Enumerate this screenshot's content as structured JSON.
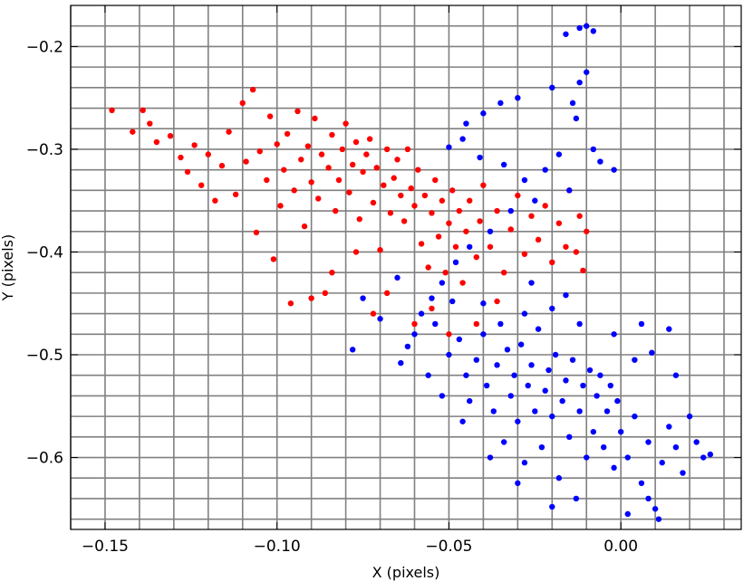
{
  "chart_data": {
    "type": "scatter",
    "title": "",
    "xlabel": "X (pixels)",
    "ylabel": "Y (pixels)",
    "xlim": [
      -0.16,
      0.035
    ],
    "ylim": [
      -0.67,
      -0.16
    ],
    "grid": true,
    "grid_color": "#808080",
    "x_ticks": [
      -0.15,
      -0.1,
      -0.05,
      0.0
    ],
    "x_tick_labels": [
      "−0.15",
      "−0.10",
      "−0.05",
      "0.00"
    ],
    "y_ticks": [
      -0.6,
      -0.5,
      -0.4,
      -0.3,
      -0.2
    ],
    "y_tick_labels": [
      "−0.6",
      "−0.5",
      "−0.4",
      "−0.3",
      "−0.2"
    ],
    "x_grid": [
      -0.16,
      -0.15,
      -0.14,
      -0.13,
      -0.12,
      -0.11,
      -0.1,
      -0.09,
      -0.08,
      -0.07,
      -0.06,
      -0.05,
      -0.04,
      -0.03,
      -0.02,
      -0.01,
      0.0,
      0.01,
      0.02,
      0.03
    ],
    "y_grid": [
      -0.66,
      -0.64,
      -0.62,
      -0.6,
      -0.58,
      -0.56,
      -0.54,
      -0.52,
      -0.5,
      -0.48,
      -0.46,
      -0.44,
      -0.42,
      -0.4,
      -0.38,
      -0.36,
      -0.34,
      -0.32,
      -0.3,
      -0.28,
      -0.26,
      -0.24,
      -0.22,
      -0.2,
      -0.18
    ],
    "series": [
      {
        "color": "#ff0000",
        "points": [
          [
            -0.148,
            -0.262
          ],
          [
            -0.142,
            -0.283
          ],
          [
            -0.139,
            -0.262
          ],
          [
            -0.137,
            -0.275
          ],
          [
            -0.135,
            -0.293
          ],
          [
            -0.131,
            -0.287
          ],
          [
            -0.128,
            -0.308
          ],
          [
            -0.126,
            -0.322
          ],
          [
            -0.124,
            -0.296
          ],
          [
            -0.122,
            -0.335
          ],
          [
            -0.12,
            -0.305
          ],
          [
            -0.118,
            -0.35
          ],
          [
            -0.116,
            -0.316
          ],
          [
            -0.114,
            -0.283
          ],
          [
            -0.112,
            -0.344
          ],
          [
            -0.11,
            -0.255
          ],
          [
            -0.109,
            -0.312
          ],
          [
            -0.107,
            -0.242
          ],
          [
            -0.106,
            -0.381
          ],
          [
            -0.105,
            -0.302
          ],
          [
            -0.103,
            -0.33
          ],
          [
            -0.102,
            -0.268
          ],
          [
            -0.101,
            -0.407
          ],
          [
            -0.1,
            -0.295
          ],
          [
            -0.099,
            -0.355
          ],
          [
            -0.098,
            -0.32
          ],
          [
            -0.097,
            -0.285
          ],
          [
            -0.096,
            -0.45
          ],
          [
            -0.095,
            -0.34
          ],
          [
            -0.094,
            -0.263
          ],
          [
            -0.093,
            -0.31
          ],
          [
            -0.092,
            -0.375
          ],
          [
            -0.091,
            -0.297
          ],
          [
            -0.09,
            -0.332
          ],
          [
            -0.089,
            -0.27
          ],
          [
            -0.088,
            -0.348
          ],
          [
            -0.087,
            -0.305
          ],
          [
            -0.086,
            -0.44
          ],
          [
            -0.085,
            -0.318
          ],
          [
            -0.084,
            -0.286
          ],
          [
            -0.083,
            -0.36
          ],
          [
            -0.082,
            -0.33
          ],
          [
            -0.081,
            -0.3
          ],
          [
            -0.08,
            -0.275
          ],
          [
            -0.079,
            -0.342
          ],
          [
            -0.078,
            -0.315
          ],
          [
            -0.077,
            -0.293
          ],
          [
            -0.076,
            -0.368
          ],
          [
            -0.075,
            -0.322
          ],
          [
            -0.074,
            -0.305
          ],
          [
            -0.073,
            -0.29
          ],
          [
            -0.072,
            -0.352
          ],
          [
            -0.071,
            -0.318
          ],
          [
            -0.07,
            -0.398
          ],
          [
            -0.069,
            -0.335
          ],
          [
            -0.068,
            -0.3
          ],
          [
            -0.067,
            -0.362
          ],
          [
            -0.066,
            -0.328
          ],
          [
            -0.065,
            -0.31
          ],
          [
            -0.064,
            -0.345
          ],
          [
            -0.063,
            -0.37
          ],
          [
            -0.062,
            -0.3
          ],
          [
            -0.061,
            -0.338
          ],
          [
            -0.06,
            -0.355
          ],
          [
            -0.059,
            -0.32
          ],
          [
            -0.058,
            -0.392
          ],
          [
            -0.057,
            -0.345
          ],
          [
            -0.056,
            -0.415
          ],
          [
            -0.055,
            -0.362
          ],
          [
            -0.054,
            -0.33
          ],
          [
            -0.053,
            -0.385
          ],
          [
            -0.052,
            -0.35
          ],
          [
            -0.051,
            -0.42
          ],
          [
            -0.05,
            -0.372
          ],
          [
            -0.049,
            -0.34
          ],
          [
            -0.048,
            -0.395
          ],
          [
            -0.047,
            -0.36
          ],
          [
            -0.046,
            -0.43
          ],
          [
            -0.045,
            -0.38
          ],
          [
            -0.044,
            -0.35
          ],
          [
            -0.042,
            -0.405
          ],
          [
            -0.041,
            -0.37
          ],
          [
            -0.04,
            -0.335
          ],
          [
            -0.038,
            -0.395
          ],
          [
            -0.036,
            -0.36
          ],
          [
            -0.034,
            -0.42
          ],
          [
            -0.032,
            -0.378
          ],
          [
            -0.03,
            -0.345
          ],
          [
            -0.028,
            -0.402
          ],
          [
            -0.026,
            -0.365
          ],
          [
            -0.024,
            -0.388
          ],
          [
            -0.022,
            -0.355
          ],
          [
            -0.02,
            -0.41
          ],
          [
            -0.018,
            -0.372
          ],
          [
            -0.016,
            -0.395
          ],
          [
            -0.015,
            -0.34
          ],
          [
            -0.012,
            -0.365
          ],
          [
            -0.01,
            -0.38
          ],
          [
            -0.011,
            -0.418
          ],
          [
            -0.013,
            -0.4
          ],
          [
            -0.09,
            -0.445
          ],
          [
            -0.084,
            -0.42
          ],
          [
            -0.072,
            -0.46
          ],
          [
            -0.068,
            -0.44
          ],
          [
            -0.077,
            -0.4
          ],
          [
            -0.06,
            -0.47
          ],
          [
            -0.055,
            -0.455
          ],
          [
            -0.05,
            -0.48
          ],
          [
            -0.042,
            -0.47
          ],
          [
            -0.036,
            -0.448
          ]
        ]
      },
      {
        "color": "#0000ff",
        "points": [
          [
            -0.01,
            -0.18
          ],
          [
            -0.012,
            -0.182
          ],
          [
            -0.008,
            -0.185
          ],
          [
            -0.016,
            -0.188
          ],
          [
            -0.01,
            -0.225
          ],
          [
            -0.012,
            -0.235
          ],
          [
            -0.014,
            -0.255
          ],
          [
            -0.013,
            -0.27
          ],
          [
            -0.02,
            -0.24
          ],
          [
            -0.03,
            -0.25
          ],
          [
            -0.035,
            -0.255
          ],
          [
            -0.04,
            -0.265
          ],
          [
            -0.045,
            -0.275
          ],
          [
            -0.046,
            -0.29
          ],
          [
            -0.05,
            -0.298
          ],
          [
            -0.041,
            -0.308
          ],
          [
            -0.034,
            -0.315
          ],
          [
            -0.028,
            -0.33
          ],
          [
            -0.022,
            -0.32
          ],
          [
            -0.015,
            -0.34
          ],
          [
            -0.006,
            -0.312
          ],
          [
            -0.002,
            -0.32
          ],
          [
            -0.008,
            -0.3
          ],
          [
            -0.018,
            -0.305
          ],
          [
            -0.025,
            -0.35
          ],
          [
            -0.032,
            -0.36
          ],
          [
            -0.038,
            -0.38
          ],
          [
            -0.044,
            -0.395
          ],
          [
            -0.048,
            -0.41
          ],
          [
            -0.052,
            -0.43
          ],
          [
            -0.055,
            -0.445
          ],
          [
            -0.058,
            -0.46
          ],
          [
            -0.06,
            -0.48
          ],
          [
            -0.062,
            -0.492
          ],
          [
            -0.07,
            -0.465
          ],
          [
            -0.075,
            -0.445
          ],
          [
            -0.078,
            -0.495
          ],
          [
            -0.065,
            -0.425
          ],
          [
            -0.064,
            -0.508
          ],
          [
            -0.054,
            -0.47
          ],
          [
            -0.05,
            -0.5
          ],
          [
            -0.047,
            -0.485
          ],
          [
            -0.045,
            -0.52
          ],
          [
            -0.044,
            -0.545
          ],
          [
            -0.042,
            -0.505
          ],
          [
            -0.04,
            -0.48
          ],
          [
            -0.039,
            -0.53
          ],
          [
            -0.037,
            -0.555
          ],
          [
            -0.036,
            -0.51
          ],
          [
            -0.035,
            -0.47
          ],
          [
            -0.034,
            -0.585
          ],
          [
            -0.033,
            -0.495
          ],
          [
            -0.032,
            -0.54
          ],
          [
            -0.031,
            -0.52
          ],
          [
            -0.03,
            -0.565
          ],
          [
            -0.029,
            -0.49
          ],
          [
            -0.028,
            -0.605
          ],
          [
            -0.027,
            -0.53
          ],
          [
            -0.026,
            -0.51
          ],
          [
            -0.025,
            -0.555
          ],
          [
            -0.024,
            -0.475
          ],
          [
            -0.023,
            -0.59
          ],
          [
            -0.022,
            -0.535
          ],
          [
            -0.021,
            -0.515
          ],
          [
            -0.02,
            -0.56
          ],
          [
            -0.019,
            -0.5
          ],
          [
            -0.018,
            -0.62
          ],
          [
            -0.017,
            -0.545
          ],
          [
            -0.016,
            -0.525
          ],
          [
            -0.015,
            -0.58
          ],
          [
            -0.014,
            -0.505
          ],
          [
            -0.013,
            -0.64
          ],
          [
            -0.012,
            -0.555
          ],
          [
            -0.011,
            -0.53
          ],
          [
            -0.01,
            -0.6
          ],
          [
            -0.009,
            -0.515
          ],
          [
            -0.008,
            -0.575
          ],
          [
            -0.007,
            -0.54
          ],
          [
            -0.006,
            -0.52
          ],
          [
            -0.005,
            -0.59
          ],
          [
            -0.004,
            -0.555
          ],
          [
            -0.003,
            -0.53
          ],
          [
            -0.002,
            -0.61
          ],
          [
            -0.001,
            -0.545
          ],
          [
            0.0,
            -0.575
          ],
          [
            0.002,
            -0.6
          ],
          [
            0.004,
            -0.56
          ],
          [
            0.006,
            -0.625
          ],
          [
            0.008,
            -0.585
          ],
          [
            0.01,
            -0.65
          ],
          [
            0.012,
            -0.605
          ],
          [
            0.014,
            -0.57
          ],
          [
            0.016,
            -0.59
          ],
          [
            0.018,
            -0.615
          ],
          [
            0.02,
            -0.56
          ],
          [
            0.022,
            -0.585
          ],
          [
            0.024,
            -0.6
          ],
          [
            0.026,
            -0.597
          ],
          [
            0.016,
            -0.52
          ],
          [
            0.014,
            -0.475
          ],
          [
            0.006,
            -0.47
          ],
          [
            0.009,
            -0.498
          ],
          [
            0.004,
            -0.505
          ],
          [
            -0.002,
            -0.48
          ],
          [
            -0.012,
            -0.47
          ],
          [
            -0.02,
            -0.455
          ],
          [
            -0.028,
            -0.46
          ],
          [
            -0.016,
            -0.442
          ],
          [
            -0.026,
            -0.43
          ],
          [
            -0.04,
            -0.45
          ],
          [
            -0.049,
            -0.448
          ],
          [
            -0.056,
            -0.52
          ],
          [
            -0.052,
            -0.54
          ],
          [
            -0.046,
            -0.565
          ],
          [
            -0.038,
            -0.6
          ],
          [
            -0.03,
            -0.625
          ],
          [
            -0.02,
            -0.648
          ],
          [
            0.002,
            -0.655
          ],
          [
            0.008,
            -0.64
          ],
          [
            0.011,
            -0.66
          ]
        ]
      }
    ]
  }
}
